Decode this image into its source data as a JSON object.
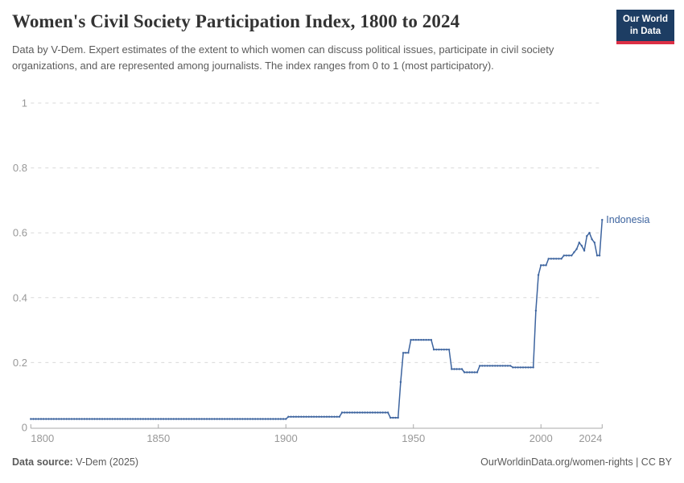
{
  "header": {
    "title": "Women's Civil Society Participation Index, 1800 to 2024",
    "subtitle": "Data by V-Dem. Expert estimates of the extent to which women can discuss political issues, participate in civil society organizations, and are represented among journalists. The index ranges from 0 to 1 (most participatory)."
  },
  "logo": {
    "line1": "Our World",
    "line2": "in Data",
    "bg_color": "#1d3d63",
    "bar_color": "#dc2f45"
  },
  "chart_data": {
    "type": "line",
    "title": "Women's Civil Society Participation Index, 1800 to 2024",
    "xlabel": "",
    "ylabel": "",
    "xlim": [
      1800,
      2024
    ],
    "ylim": [
      0,
      1
    ],
    "x_ticks": [
      1800,
      1850,
      1900,
      1950,
      2000,
      2024
    ],
    "x_tick_labels": [
      "1800",
      "1850",
      "1900",
      "1950",
      "2000",
      "2024"
    ],
    "y_ticks": [
      0,
      0.2,
      0.4,
      0.6,
      0.8,
      1
    ],
    "y_tick_labels": [
      "0",
      "0.2",
      "0.4",
      "0.6",
      "0.8",
      "1"
    ],
    "grid": "dashed-horizontal",
    "legend_position": "end-of-line-label",
    "marker_style": "small-dot-every-year",
    "interpolation": "linear-yearly",
    "series": [
      {
        "name": "Indonesia",
        "color": "#3d649f",
        "points": [
          [
            1800,
            0.026
          ],
          [
            1900,
            0.026
          ],
          [
            1901,
            0.033
          ],
          [
            1921,
            0.033
          ],
          [
            1922,
            0.046
          ],
          [
            1940,
            0.046
          ],
          [
            1941,
            0.03
          ],
          [
            1944,
            0.03
          ],
          [
            1945,
            0.14
          ],
          [
            1946,
            0.23
          ],
          [
            1948,
            0.23
          ],
          [
            1949,
            0.27
          ],
          [
            1957,
            0.27
          ],
          [
            1958,
            0.24
          ],
          [
            1964,
            0.24
          ],
          [
            1965,
            0.18
          ],
          [
            1969,
            0.18
          ],
          [
            1970,
            0.17
          ],
          [
            1975,
            0.17
          ],
          [
            1976,
            0.19
          ],
          [
            1988,
            0.19
          ],
          [
            1989,
            0.185
          ],
          [
            1997,
            0.185
          ],
          [
            1998,
            0.36
          ],
          [
            1999,
            0.47
          ],
          [
            2000,
            0.5
          ],
          [
            2002,
            0.5
          ],
          [
            2003,
            0.52
          ],
          [
            2008,
            0.52
          ],
          [
            2009,
            0.53
          ],
          [
            2012,
            0.53
          ],
          [
            2013,
            0.54
          ],
          [
            2014,
            0.55
          ],
          [
            2015,
            0.57
          ],
          [
            2016,
            0.56
          ],
          [
            2017,
            0.545
          ],
          [
            2018,
            0.59
          ],
          [
            2019,
            0.6
          ],
          [
            2020,
            0.58
          ],
          [
            2021,
            0.57
          ],
          [
            2022,
            0.53
          ],
          [
            2023,
            0.53
          ],
          [
            2024,
            0.64
          ]
        ]
      }
    ]
  },
  "footer": {
    "source_label": "Data source:",
    "source_value": " V-Dem (2025)",
    "credit": "OurWorldinData.org/women-rights | CC BY"
  },
  "colors": {
    "line": "#3d649f",
    "axis_label": "#989898",
    "gridline": "#d9d9d9",
    "axis_line": "#a9a9a9",
    "subtitle": "#5b5b5b",
    "title": "#333333"
  }
}
